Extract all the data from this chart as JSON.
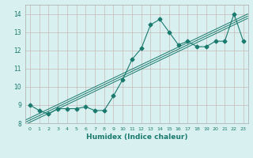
{
  "x": [
    0,
    1,
    2,
    3,
    4,
    5,
    6,
    7,
    8,
    9,
    10,
    11,
    12,
    13,
    14,
    15,
    16,
    17,
    18,
    19,
    20,
    21,
    22,
    23
  ],
  "y": [
    9.0,
    8.7,
    8.5,
    8.8,
    8.8,
    8.8,
    8.9,
    8.7,
    8.7,
    9.5,
    10.4,
    11.5,
    12.1,
    13.4,
    13.7,
    13.0,
    12.3,
    12.5,
    12.2,
    12.2,
    12.5,
    12.5,
    14.0,
    12.5
  ],
  "line_color": "#1a7a6e",
  "marker": "D",
  "marker_size": 2.5,
  "bg_color": "#d8f0f0",
  "grid_color": "#c8b8b8",
  "xlabel": "Humidex (Indice chaleur)",
  "ylim": [
    8,
    14.5
  ],
  "xlim": [
    -0.5,
    23.5
  ],
  "yticks": [
    8,
    9,
    10,
    11,
    12,
    13,
    14
  ],
  "xticks": [
    0,
    1,
    2,
    3,
    4,
    5,
    6,
    7,
    8,
    9,
    10,
    11,
    12,
    13,
    14,
    15,
    16,
    17,
    18,
    19,
    20,
    21,
    22,
    23
  ],
  "reg_color": "#1a7a6e",
  "reg_offsets": [
    -0.12,
    0.0,
    0.12
  ],
  "reg_linewidth": 0.7
}
